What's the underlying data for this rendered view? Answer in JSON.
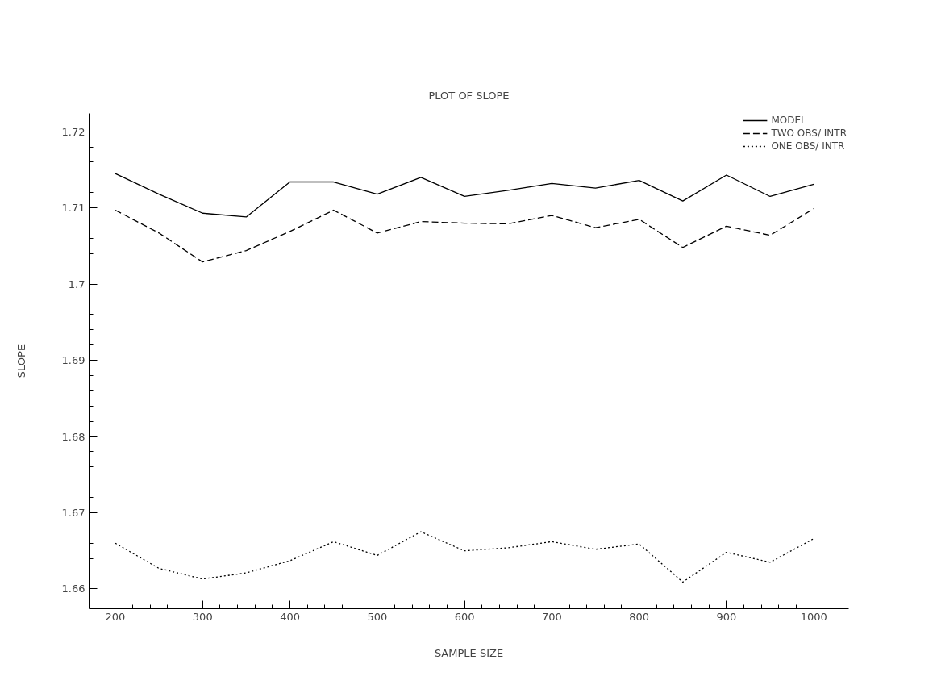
{
  "chart_data": {
    "type": "line",
    "title": "PLOT OF SLOPE",
    "xlabel": "SAMPLE SIZE",
    "ylabel": "SLOPE",
    "x": [
      200,
      250,
      300,
      350,
      400,
      450,
      500,
      550,
      600,
      650,
      700,
      750,
      800,
      850,
      900,
      950,
      1000
    ],
    "series": [
      {
        "name": "MODEL",
        "color": "#000000",
        "line_style": "solid",
        "values": [
          1.7145,
          1.7118,
          1.7093,
          1.7088,
          1.7134,
          1.7134,
          1.7118,
          1.714,
          1.7115,
          1.7123,
          1.7132,
          1.7126,
          1.7136,
          1.7109,
          1.7143,
          1.7115,
          1.7131
        ]
      },
      {
        "name": "TWO OBS/ INTR",
        "color": "#000000",
        "line_style": "dashed",
        "values": [
          1.7097,
          1.7067,
          1.7029,
          1.7044,
          1.7069,
          1.7097,
          1.7067,
          1.7082,
          1.708,
          1.7079,
          1.709,
          1.7074,
          1.7085,
          1.7048,
          1.7076,
          1.7064,
          1.7099
        ]
      },
      {
        "name": "ONE OBS/ INTR",
        "color": "#000000",
        "line_style": "dotted",
        "values": [
          1.666,
          1.6627,
          1.6613,
          1.6621,
          1.6637,
          1.6662,
          1.6644,
          1.6675,
          1.665,
          1.6654,
          1.6662,
          1.6652,
          1.6659,
          1.6609,
          1.6648,
          1.6635,
          1.6666
        ]
      }
    ],
    "xlim": [
      170,
      1040
    ],
    "ylim": [
      1.6574,
      1.7224
    ],
    "xticks": [
      200,
      300,
      400,
      500,
      600,
      700,
      800,
      900,
      1000
    ],
    "yticks": [
      1.66,
      1.67,
      1.68,
      1.69,
      1.7,
      1.71,
      1.72
    ],
    "grid": false,
    "legend": "top right",
    "marker": "none"
  }
}
